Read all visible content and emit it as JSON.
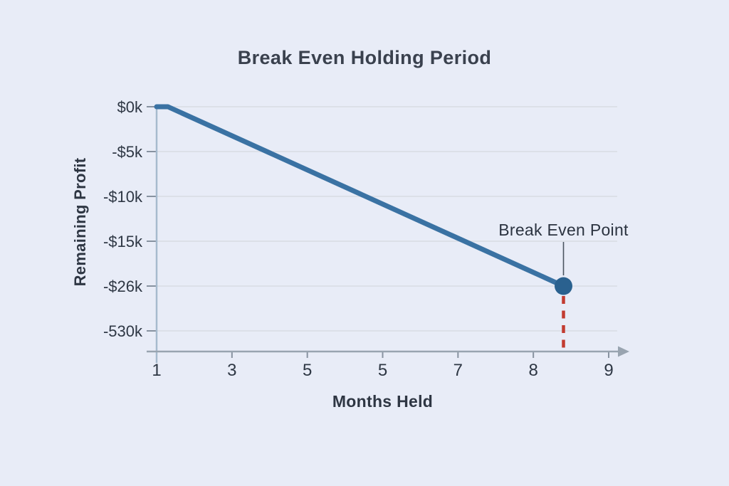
{
  "page": {
    "background_color": "#e8ecf7"
  },
  "chart_data": {
    "type": "line",
    "title": "Break Even Holding Period",
    "xlabel": "Months Held",
    "ylabel": "Remaining Profit",
    "x_tick_labels": [
      "1",
      "3",
      "5",
      "5",
      "7",
      "8",
      "9"
    ],
    "y_tick_labels": [
      "$0k",
      "-$5k",
      "-$10k",
      "-$15k",
      "-$26k",
      "-530k"
    ],
    "grid": true,
    "legend": false,
    "series": [
      {
        "name": "Remaining Profit",
        "color": "#3a72a3",
        "points": [
          {
            "month": 1.0,
            "value_k": 0
          },
          {
            "month": 1.3,
            "value_k": 0
          },
          {
            "month": 8.4,
            "value_k": -26
          }
        ]
      }
    ],
    "annotation": {
      "label": "Break Even Point",
      "month": 8.4,
      "value_k": -26,
      "marker_color": "#2a618f",
      "leader_color": "#4a5560",
      "dashed_color": "#c23b31"
    },
    "colors": {
      "gridline": "#d7dbe4",
      "x_axis": "#99a4b0",
      "y_axis": "#a6bace",
      "tick": "#8792a0",
      "tick_label": "#2e3744",
      "annotation_text": "#2b3340"
    }
  }
}
